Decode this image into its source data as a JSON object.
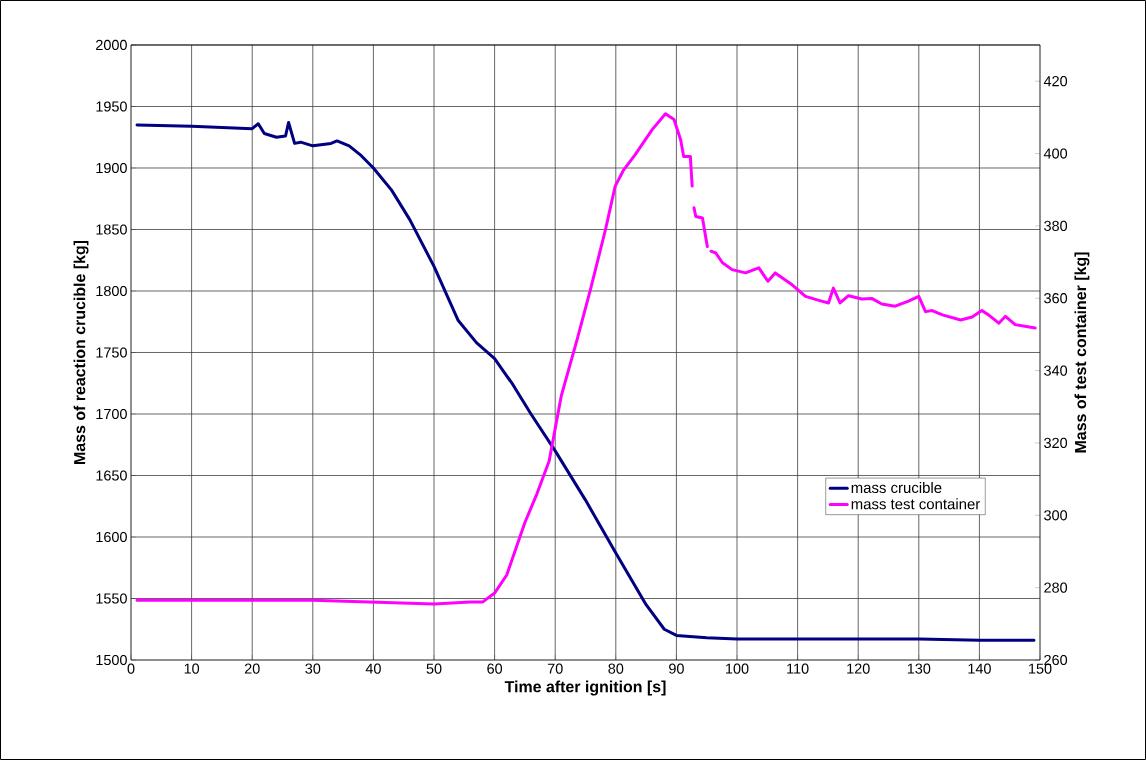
{
  "chart_data": {
    "type": "line",
    "xlabel": "Time after ignition [s]",
    "ylabel": "Mass of reaction crucible [kg]",
    "y2label": "Mass of test container [kg]",
    "xlim": [
      0,
      150
    ],
    "ylim": [
      1500,
      2000
    ],
    "y2lim": [
      260,
      430
    ],
    "xticks": [
      0,
      10,
      20,
      30,
      40,
      50,
      60,
      70,
      80,
      90,
      100,
      110,
      120,
      130,
      140,
      150
    ],
    "yticks": [
      1500,
      1550,
      1600,
      1650,
      1700,
      1750,
      1800,
      1850,
      1900,
      1950,
      2000
    ],
    "y2ticks": [
      260,
      280,
      300,
      320,
      340,
      360,
      380,
      400,
      420
    ],
    "grid": true,
    "legend": "right",
    "line_style": "solid",
    "series": [
      {
        "name": "mass crucible",
        "color": "#000080",
        "axis": "y",
        "x": [
          1,
          10,
          20,
          21,
          22,
          24,
          25.5,
          26,
          27,
          28,
          30,
          33,
          34,
          36,
          38,
          40,
          43,
          46,
          50,
          54,
          57,
          60,
          63,
          66,
          70,
          75,
          80,
          85,
          88,
          90,
          95,
          100,
          110,
          120,
          130,
          140,
          149
        ],
        "values": [
          1935,
          1934,
          1932,
          1936,
          1928,
          1925,
          1926,
          1937,
          1920,
          1921,
          1918,
          1920,
          1922,
          1918,
          1910,
          1900,
          1882,
          1858,
          1820,
          1776,
          1758,
          1745,
          1724,
          1700,
          1670,
          1630,
          1587,
          1545,
          1525,
          1520,
          1518,
          1517,
          1517,
          1517,
          1517,
          1516,
          1516
        ]
      },
      {
        "name": "mass test container",
        "color": "#ff00ff",
        "axis": "y2",
        "x": [
          1,
          10,
          30,
          50,
          56,
          58,
          60,
          62,
          65,
          67,
          69,
          71,
          73.6,
          75.8,
          78.3,
          79.9,
          81.3,
          83.2,
          86,
          88.2,
          89.6,
          90.7,
          91.2,
          92.3,
          92.6,
          92.75,
          92.9,
          93.2,
          94.3,
          95.1,
          95.4,
          95.7,
          96.5,
          97.6,
          99.2,
          101.4,
          103.6,
          105.1,
          106.3,
          109.1,
          111.3,
          113.5,
          115.1,
          115.9,
          117,
          118.4,
          120.6,
          122.3,
          123.9,
          126.1,
          128.3,
          130,
          131.1,
          132.2,
          133.9,
          136.9,
          138.8,
          140.4,
          141.5,
          143.2,
          144.3,
          145.9,
          149.2
        ],
        "values": [
          276.5,
          276.5,
          276.5,
          275.5,
          276,
          276,
          278.5,
          283.5,
          298,
          306,
          315,
          333,
          348.5,
          362.3,
          379,
          391,
          395.5,
          399.7,
          406.6,
          411,
          409.4,
          403.8,
          399.2,
          399.2,
          391,
          null,
          385,
          382.6,
          382.2,
          374.3,
          null,
          373,
          372.5,
          369.8,
          367.9,
          367,
          368.4,
          364.7,
          367,
          363.7,
          360.5,
          359.4,
          358.7,
          362.8,
          358.7,
          360.7,
          359.8,
          359.9,
          358.4,
          357.8,
          359.2,
          360.5,
          356.3,
          356.6,
          355.4,
          354,
          354.8,
          356.6,
          355.4,
          353.1,
          355,
          352.7,
          351.8
        ]
      }
    ]
  }
}
